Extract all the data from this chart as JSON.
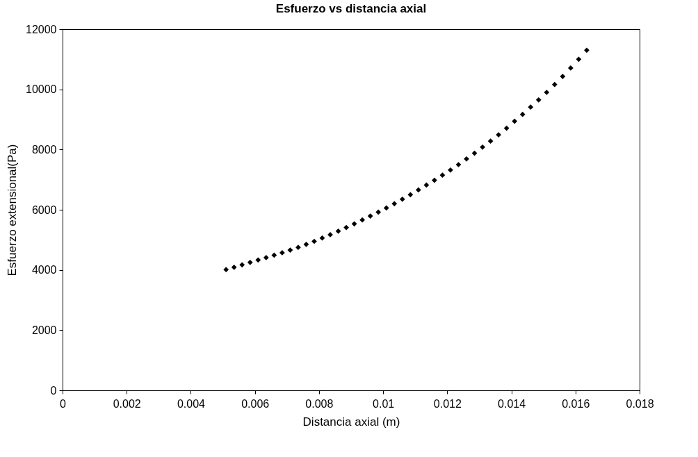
{
  "chart_data": {
    "type": "scatter",
    "title": "Esfuerzo vs distancia axial",
    "xlabel": "Distancia axial (m)",
    "ylabel": "Esfuerzo extensional(Pa)",
    "x": [
      0.0051,
      0.00535,
      0.0056,
      0.00585,
      0.0061,
      0.00635,
      0.0066,
      0.00685,
      0.0071,
      0.00735,
      0.0076,
      0.00785,
      0.0081,
      0.00835,
      0.0086,
      0.00885,
      0.0091,
      0.00935,
      0.0096,
      0.00985,
      0.0101,
      0.01035,
      0.0106,
      0.01085,
      0.0111,
      0.01135,
      0.0116,
      0.01185,
      0.0121,
      0.01235,
      0.0126,
      0.01285,
      0.0131,
      0.01335,
      0.0136,
      0.01385,
      0.0141,
      0.01435,
      0.0146,
      0.01485,
      0.0151,
      0.01535,
      0.0156,
      0.01585,
      0.0161,
      0.01635
    ],
    "series": [
      {
        "color": "#000000",
        "values": [
          4010,
          4090,
          4170,
          4250,
          4330,
          4410,
          4490,
          4570,
          4660,
          4750,
          4850,
          4950,
          5060,
          5170,
          5290,
          5410,
          5530,
          5660,
          5790,
          5920,
          6060,
          6200,
          6350,
          6500,
          6660,
          6820,
          6980,
          7150,
          7320,
          7500,
          7690,
          7880,
          8080,
          8280,
          8490,
          8710,
          8940,
          9170,
          9410,
          9650,
          9900,
          10160,
          10430,
          10710,
          11000,
          11300
        ]
      }
    ],
    "xlim": [
      0,
      0.018
    ],
    "xticks": [
      0,
      0.002,
      0.004,
      0.006,
      0.008,
      0.01,
      0.012,
      0.014,
      0.016,
      0.018
    ],
    "ylim": [
      0,
      12000
    ],
    "yticks": [
      0,
      2000,
      4000,
      6000,
      8000,
      10000,
      12000
    ],
    "grid": false,
    "marker": "diamond"
  }
}
